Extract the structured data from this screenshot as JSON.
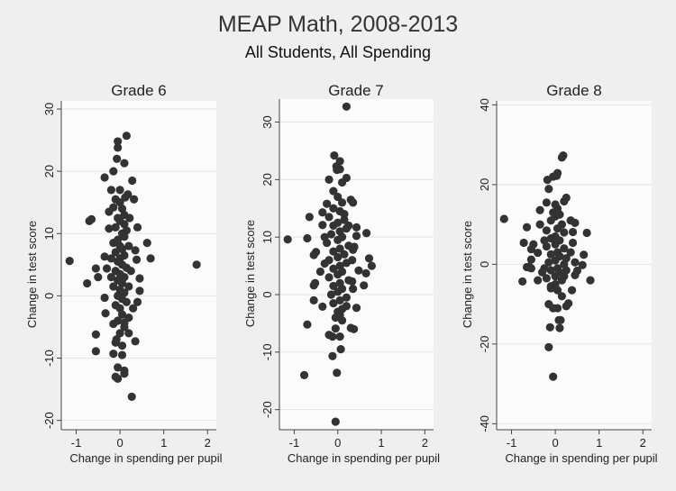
{
  "chart_data": {
    "title": "MEAP Math, 2008-2013",
    "subtitle": "All Students, All Spending",
    "colors": {
      "background": "#efefef",
      "plot_area": "#fbfbfb",
      "marker": "#333333",
      "grid": "#e6e6e6"
    },
    "panels": [
      {
        "type": "scatter",
        "title": "Grade 6",
        "xlabel": "Change in spending per pupil",
        "ylabel": "Change in test score",
        "xlim": [
          -1.34,
          2.2
        ],
        "ylim": [
          -21.5,
          31.3
        ],
        "xticks": [
          -1,
          0,
          1,
          2
        ],
        "yticks": [
          -20,
          -10,
          0,
          10,
          20,
          30
        ],
        "grid": true,
        "points": [
          [
            0.15,
            25.7
          ],
          [
            -0.05,
            24.8
          ],
          [
            -0.05,
            23.8
          ],
          [
            -0.07,
            22
          ],
          [
            0.1,
            21.3
          ],
          [
            -0.15,
            20
          ],
          [
            0.28,
            18.5
          ],
          [
            -0.35,
            19
          ],
          [
            -0.2,
            17
          ],
          [
            0,
            17
          ],
          [
            0.18,
            16.3
          ],
          [
            0.32,
            15.5
          ],
          [
            -0.1,
            15.5
          ],
          [
            -0.7,
            12
          ],
          [
            -0.65,
            12.3
          ],
          [
            -0.25,
            13.5
          ],
          [
            0.4,
            11
          ],
          [
            -0.25,
            10.8
          ],
          [
            0.62,
            8.5
          ],
          [
            0.7,
            6
          ],
          [
            1.75,
            5
          ],
          [
            -1.15,
            5.6
          ],
          [
            -0.55,
            4.4
          ],
          [
            -0.35,
            6.3
          ],
          [
            -0.3,
            4.4
          ],
          [
            -0.75,
            2
          ],
          [
            -0.5,
            3
          ],
          [
            0.35,
            7.3
          ],
          [
            0.38,
            5.8
          ],
          [
            0.45,
            2.8
          ],
          [
            0.45,
            0.8
          ],
          [
            0.4,
            -1
          ],
          [
            0.3,
            -2
          ],
          [
            -0.35,
            -0.3
          ],
          [
            -0.33,
            -2.8
          ],
          [
            -0.55,
            -6.2
          ],
          [
            -0.55,
            -8.9
          ],
          [
            0.35,
            -7.3
          ],
          [
            0.2,
            -6
          ],
          [
            -0.15,
            -9.3
          ],
          [
            -0.1,
            -13
          ],
          [
            -0.05,
            -13.3
          ],
          [
            0.1,
            -12
          ],
          [
            0.1,
            -12.5
          ],
          [
            -0.05,
            -11.5
          ],
          [
            0.27,
            -16.2
          ],
          [
            0.05,
            -9.5
          ],
          [
            -0.1,
            -7.5
          ],
          [
            0.2,
            -3.5
          ],
          [
            0.1,
            -4.3
          ],
          [
            0,
            15
          ],
          [
            0.05,
            14
          ],
          [
            0.1,
            13
          ],
          [
            -0.05,
            12.5
          ],
          [
            0,
            12
          ],
          [
            0.1,
            11.5
          ],
          [
            -0.1,
            11
          ],
          [
            0.05,
            10
          ],
          [
            0.15,
            10.5
          ],
          [
            -0.05,
            9
          ],
          [
            0.1,
            9.5
          ],
          [
            -0.15,
            8.5
          ],
          [
            0,
            8
          ],
          [
            0.05,
            7.5
          ],
          [
            -0.1,
            7
          ],
          [
            0.1,
            6.5
          ],
          [
            0,
            6
          ],
          [
            -0.05,
            5.5
          ],
          [
            0.05,
            5
          ],
          [
            0.15,
            4.5
          ],
          [
            -0.1,
            4
          ],
          [
            0,
            3.5
          ],
          [
            0.1,
            3
          ],
          [
            -0.05,
            2.5
          ],
          [
            0.05,
            2
          ],
          [
            -0.15,
            1.5
          ],
          [
            0,
            1
          ],
          [
            0.1,
            0.5
          ],
          [
            -0.05,
            0
          ],
          [
            0.05,
            -0.5
          ],
          [
            0.15,
            -1
          ],
          [
            -0.1,
            -1.5
          ],
          [
            0,
            -2
          ],
          [
            0.05,
            -3
          ],
          [
            -0.05,
            -4
          ],
          [
            0.1,
            -5
          ],
          [
            0,
            -6
          ],
          [
            -0.08,
            -7
          ],
          [
            0.05,
            -8
          ],
          [
            -0.15,
            -4.5
          ],
          [
            0.2,
            1.5
          ],
          [
            0.25,
            4
          ],
          [
            -0.2,
            6
          ],
          [
            0.2,
            8
          ],
          [
            -0.2,
            3
          ],
          [
            0.22,
            12.5
          ],
          [
            -0.15,
            14.2
          ],
          [
            0.12,
            15.8
          ]
        ]
      },
      {
        "type": "scatter",
        "title": "Grade 7",
        "xlabel": "Change in spending per pupil",
        "ylabel": "Change in test score",
        "xlim": [
          -1.34,
          2.2
        ],
        "ylim": [
          -23.5,
          34
        ],
        "xticks": [
          -1,
          0,
          1,
          2
        ],
        "yticks": [
          -20,
          -10,
          0,
          10,
          20,
          30
        ],
        "grid": true,
        "points": [
          [
            0.2,
            32.7
          ],
          [
            -0.08,
            24.2
          ],
          [
            0.05,
            23.2
          ],
          [
            -0.03,
            22.3
          ],
          [
            0.05,
            21.8
          ],
          [
            -0.02,
            21.7
          ],
          [
            0.2,
            20.3
          ],
          [
            -0.2,
            20
          ],
          [
            0.1,
            19.5
          ],
          [
            -0.1,
            18
          ],
          [
            0.3,
            16.5
          ],
          [
            0.35,
            16
          ],
          [
            -0.65,
            13.5
          ],
          [
            -0.35,
            14.3
          ],
          [
            -0.35,
            12.1
          ],
          [
            0.43,
            11.7
          ],
          [
            0.66,
            10.7
          ],
          [
            0.43,
            10.2
          ],
          [
            -1.15,
            9.6
          ],
          [
            -0.7,
            9.8
          ],
          [
            0.38,
            8.3
          ],
          [
            0.35,
            7.8
          ],
          [
            0.72,
            6.3
          ],
          [
            0.78,
            5
          ],
          [
            0.65,
            3.7
          ],
          [
            0.6,
            1.6
          ],
          [
            0.48,
            4.2
          ],
          [
            0.33,
            6
          ],
          [
            0.35,
            1
          ],
          [
            0.33,
            2.3
          ],
          [
            -0.55,
            6.9
          ],
          [
            -0.5,
            7.4
          ],
          [
            -0.4,
            4
          ],
          [
            -0.3,
            5.4
          ],
          [
            -0.55,
            1.6
          ],
          [
            -0.52,
            2
          ],
          [
            -0.55,
            -1
          ],
          [
            -0.35,
            -2.1
          ],
          [
            0.43,
            -2.3
          ],
          [
            0.3,
            -5.8
          ],
          [
            0.37,
            -6
          ],
          [
            -0.7,
            -5.2
          ],
          [
            -0.2,
            -7
          ],
          [
            -0.12,
            -7.3
          ],
          [
            0.05,
            -7.3
          ],
          [
            -0.05,
            -5.9
          ],
          [
            0.07,
            -9.5
          ],
          [
            -0.12,
            -10.7
          ],
          [
            -0.77,
            -14
          ],
          [
            -0.02,
            -13.6
          ],
          [
            -0.05,
            -22.1
          ],
          [
            0.2,
            -2
          ],
          [
            0.1,
            -4.5
          ],
          [
            0.05,
            -3.5
          ],
          [
            0,
            17
          ],
          [
            0.1,
            16
          ],
          [
            -0.1,
            15
          ],
          [
            0.05,
            14.5
          ],
          [
            -0.2,
            13.5
          ],
          [
            0.15,
            13
          ],
          [
            0,
            12.5
          ],
          [
            -0.1,
            12
          ],
          [
            0.2,
            11.5
          ],
          [
            0.05,
            11
          ],
          [
            -0.15,
            10.5
          ],
          [
            0.1,
            10
          ],
          [
            0,
            9.5
          ],
          [
            -0.25,
            9
          ],
          [
            0.25,
            8.5
          ],
          [
            0.05,
            8
          ],
          [
            -0.1,
            7.5
          ],
          [
            0.15,
            7
          ],
          [
            0,
            6.5
          ],
          [
            -0.2,
            6
          ],
          [
            0.2,
            5.5
          ],
          [
            0.05,
            5
          ],
          [
            -0.1,
            4.5
          ],
          [
            0.1,
            4
          ],
          [
            0,
            3.5
          ],
          [
            -0.2,
            3
          ],
          [
            0.25,
            2.5
          ],
          [
            0.05,
            2
          ],
          [
            -0.1,
            1.5
          ],
          [
            0.1,
            1
          ],
          [
            0,
            0.5
          ],
          [
            -0.15,
            0
          ],
          [
            0.2,
            -0.5
          ],
          [
            0.05,
            -1
          ],
          [
            -0.1,
            -1.5
          ],
          [
            0.1,
            -2.5
          ],
          [
            0,
            -3
          ],
          [
            -0.05,
            -4
          ],
          [
            0.15,
            14
          ],
          [
            -0.25,
            15.8
          ],
          [
            0.25,
            12
          ],
          [
            -0.3,
            10
          ]
        ]
      },
      {
        "type": "scatter",
        "title": "Grade 8",
        "xlabel": "Change in spending per pupil",
        "ylabel": "Change in test score",
        "xlim": [
          -1.34,
          2.2
        ],
        "ylim": [
          -41.5,
          41
        ],
        "xticks": [
          -1,
          0,
          1,
          2
        ],
        "yticks": [
          -40,
          -20,
          0,
          20,
          40
        ],
        "grid": true,
        "points": [
          [
            0.18,
            27.3
          ],
          [
            0.15,
            26.8
          ],
          [
            0.05,
            22.9
          ],
          [
            0.03,
            22.2
          ],
          [
            -0.05,
            22
          ],
          [
            -0.18,
            21.2
          ],
          [
            -0.15,
            18.9
          ],
          [
            0.25,
            16.7
          ],
          [
            0.2,
            15.8
          ],
          [
            -0.2,
            15.5
          ],
          [
            -0.35,
            13.6
          ],
          [
            -1.17,
            11.4
          ],
          [
            -0.65,
            9.3
          ],
          [
            -0.35,
            10
          ],
          [
            0.35,
            11
          ],
          [
            0.45,
            10.4
          ],
          [
            0.4,
            8.1
          ],
          [
            0.72,
            7.9
          ],
          [
            -0.72,
            5.4
          ],
          [
            -0.5,
            5
          ],
          [
            -0.55,
            3.8
          ],
          [
            -0.4,
            2.9
          ],
          [
            0.4,
            5.4
          ],
          [
            0.35,
            3
          ],
          [
            0.65,
            2.4
          ],
          [
            0.45,
            0.5
          ],
          [
            0.62,
            -0.2
          ],
          [
            0.5,
            -1.6
          ],
          [
            0.45,
            -2.7
          ],
          [
            0.8,
            -4
          ],
          [
            -0.65,
            -0.7
          ],
          [
            -0.6,
            -0.6
          ],
          [
            -0.55,
            -1
          ],
          [
            -0.75,
            -4.3
          ],
          [
            -0.4,
            -4
          ],
          [
            -0.55,
            1.2
          ],
          [
            -0.3,
            -2
          ],
          [
            0.38,
            -6.5
          ],
          [
            0.3,
            -9.8
          ],
          [
            0.15,
            -8
          ],
          [
            -0.15,
            -10
          ],
          [
            -0.05,
            -11
          ],
          [
            0.05,
            -11
          ],
          [
            -0.1,
            -6
          ],
          [
            0.08,
            -14
          ],
          [
            0.12,
            -14
          ],
          [
            -0.12,
            -15.8
          ],
          [
            0.1,
            -16
          ],
          [
            -0.15,
            -20.8
          ],
          [
            -0.05,
            -28.2
          ],
          [
            0.25,
            -10.5
          ],
          [
            0.2,
            -3
          ],
          [
            0,
            15
          ],
          [
            0.05,
            14
          ],
          [
            -0.05,
            13
          ],
          [
            0.1,
            12.5
          ],
          [
            0,
            12
          ],
          [
            -0.1,
            11
          ],
          [
            0.15,
            10
          ],
          [
            0.05,
            9
          ],
          [
            -0.2,
            8.5
          ],
          [
            0.2,
            8
          ],
          [
            0,
            7
          ],
          [
            -0.1,
            6.5
          ],
          [
            0.1,
            6
          ],
          [
            0,
            5
          ],
          [
            -0.2,
            4.5
          ],
          [
            0.2,
            4
          ],
          [
            0.05,
            3
          ],
          [
            -0.1,
            2.5
          ],
          [
            0.1,
            2
          ],
          [
            0,
            1
          ],
          [
            -0.15,
            0.5
          ],
          [
            0.2,
            0
          ],
          [
            0.05,
            -1
          ],
          [
            -0.1,
            -1.5
          ],
          [
            0.1,
            -2
          ],
          [
            0,
            -3
          ],
          [
            -0.2,
            -3.5
          ],
          [
            0.15,
            -4
          ],
          [
            0,
            -5
          ],
          [
            -0.1,
            -5.5
          ],
          [
            0.05,
            -6.5
          ],
          [
            0.25,
            1.5
          ],
          [
            -0.25,
            6
          ],
          [
            0.25,
            -1.5
          ],
          [
            -0.25,
            -1
          ]
        ]
      }
    ]
  }
}
